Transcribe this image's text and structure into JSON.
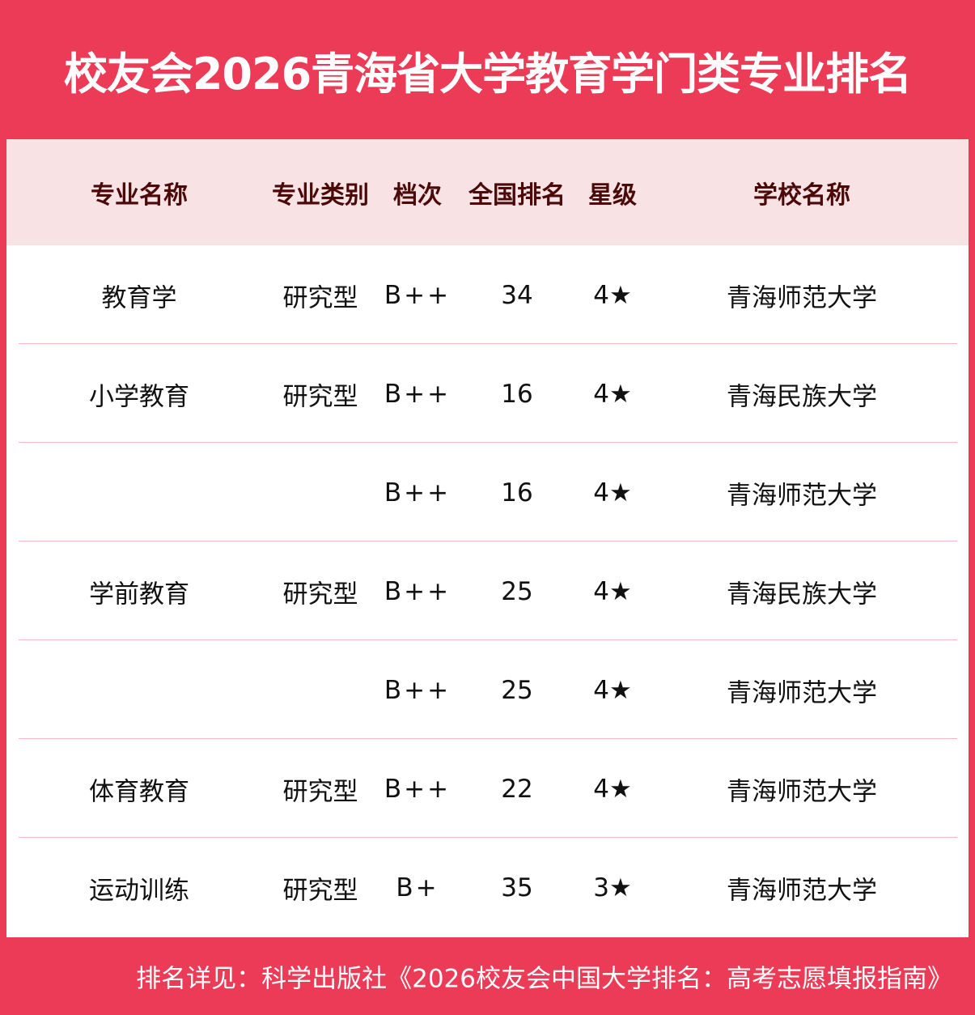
{
  "title": "校友会2026青海省大学教育学门类专业排名",
  "headers": [
    "专业名称",
    "专业类别",
    "档次",
    "全国排名",
    "星级",
    "学校名称"
  ],
  "rows": [
    {
      "major": "教育学",
      "type": "研究型",
      "grade": "B++",
      "rank": "34",
      "stars": "4★",
      "school": "青海师范大学"
    },
    {
      "major": "小学教育",
      "type": "研究型",
      "grade": "B++",
      "rank": "16",
      "stars": "4★",
      "school": "青海民族大学"
    },
    {
      "major": "",
      "type": "",
      "grade": "B++",
      "rank": "16",
      "stars": "4★",
      "school": "青海师范大学"
    },
    {
      "major": "学前教育",
      "type": "研究型",
      "grade": "B++",
      "rank": "25",
      "stars": "4★",
      "school": "青海民族大学"
    },
    {
      "major": "",
      "type": "",
      "grade": "B++",
      "rank": "25",
      "stars": "4★",
      "school": "青海师范大学"
    },
    {
      "major": "体育教育",
      "type": "研究型",
      "grade": "B++",
      "rank": "22",
      "stars": "4★",
      "school": "青海师范大学"
    },
    {
      "major": "运动训练",
      "type": "研究型",
      "grade": "B+",
      "rank": "35",
      "stars": "3★",
      "school": "青海师范大学"
    }
  ],
  "footer": "排名详见：科学出版社《2026校友会中国大学排名：高考志愿填报指南》",
  "colors": {
    "brand": "#EC3B56",
    "header_bg": "#F8E2E4",
    "header_text": "#4A0A0A",
    "divider": "#F5B8C0"
  }
}
